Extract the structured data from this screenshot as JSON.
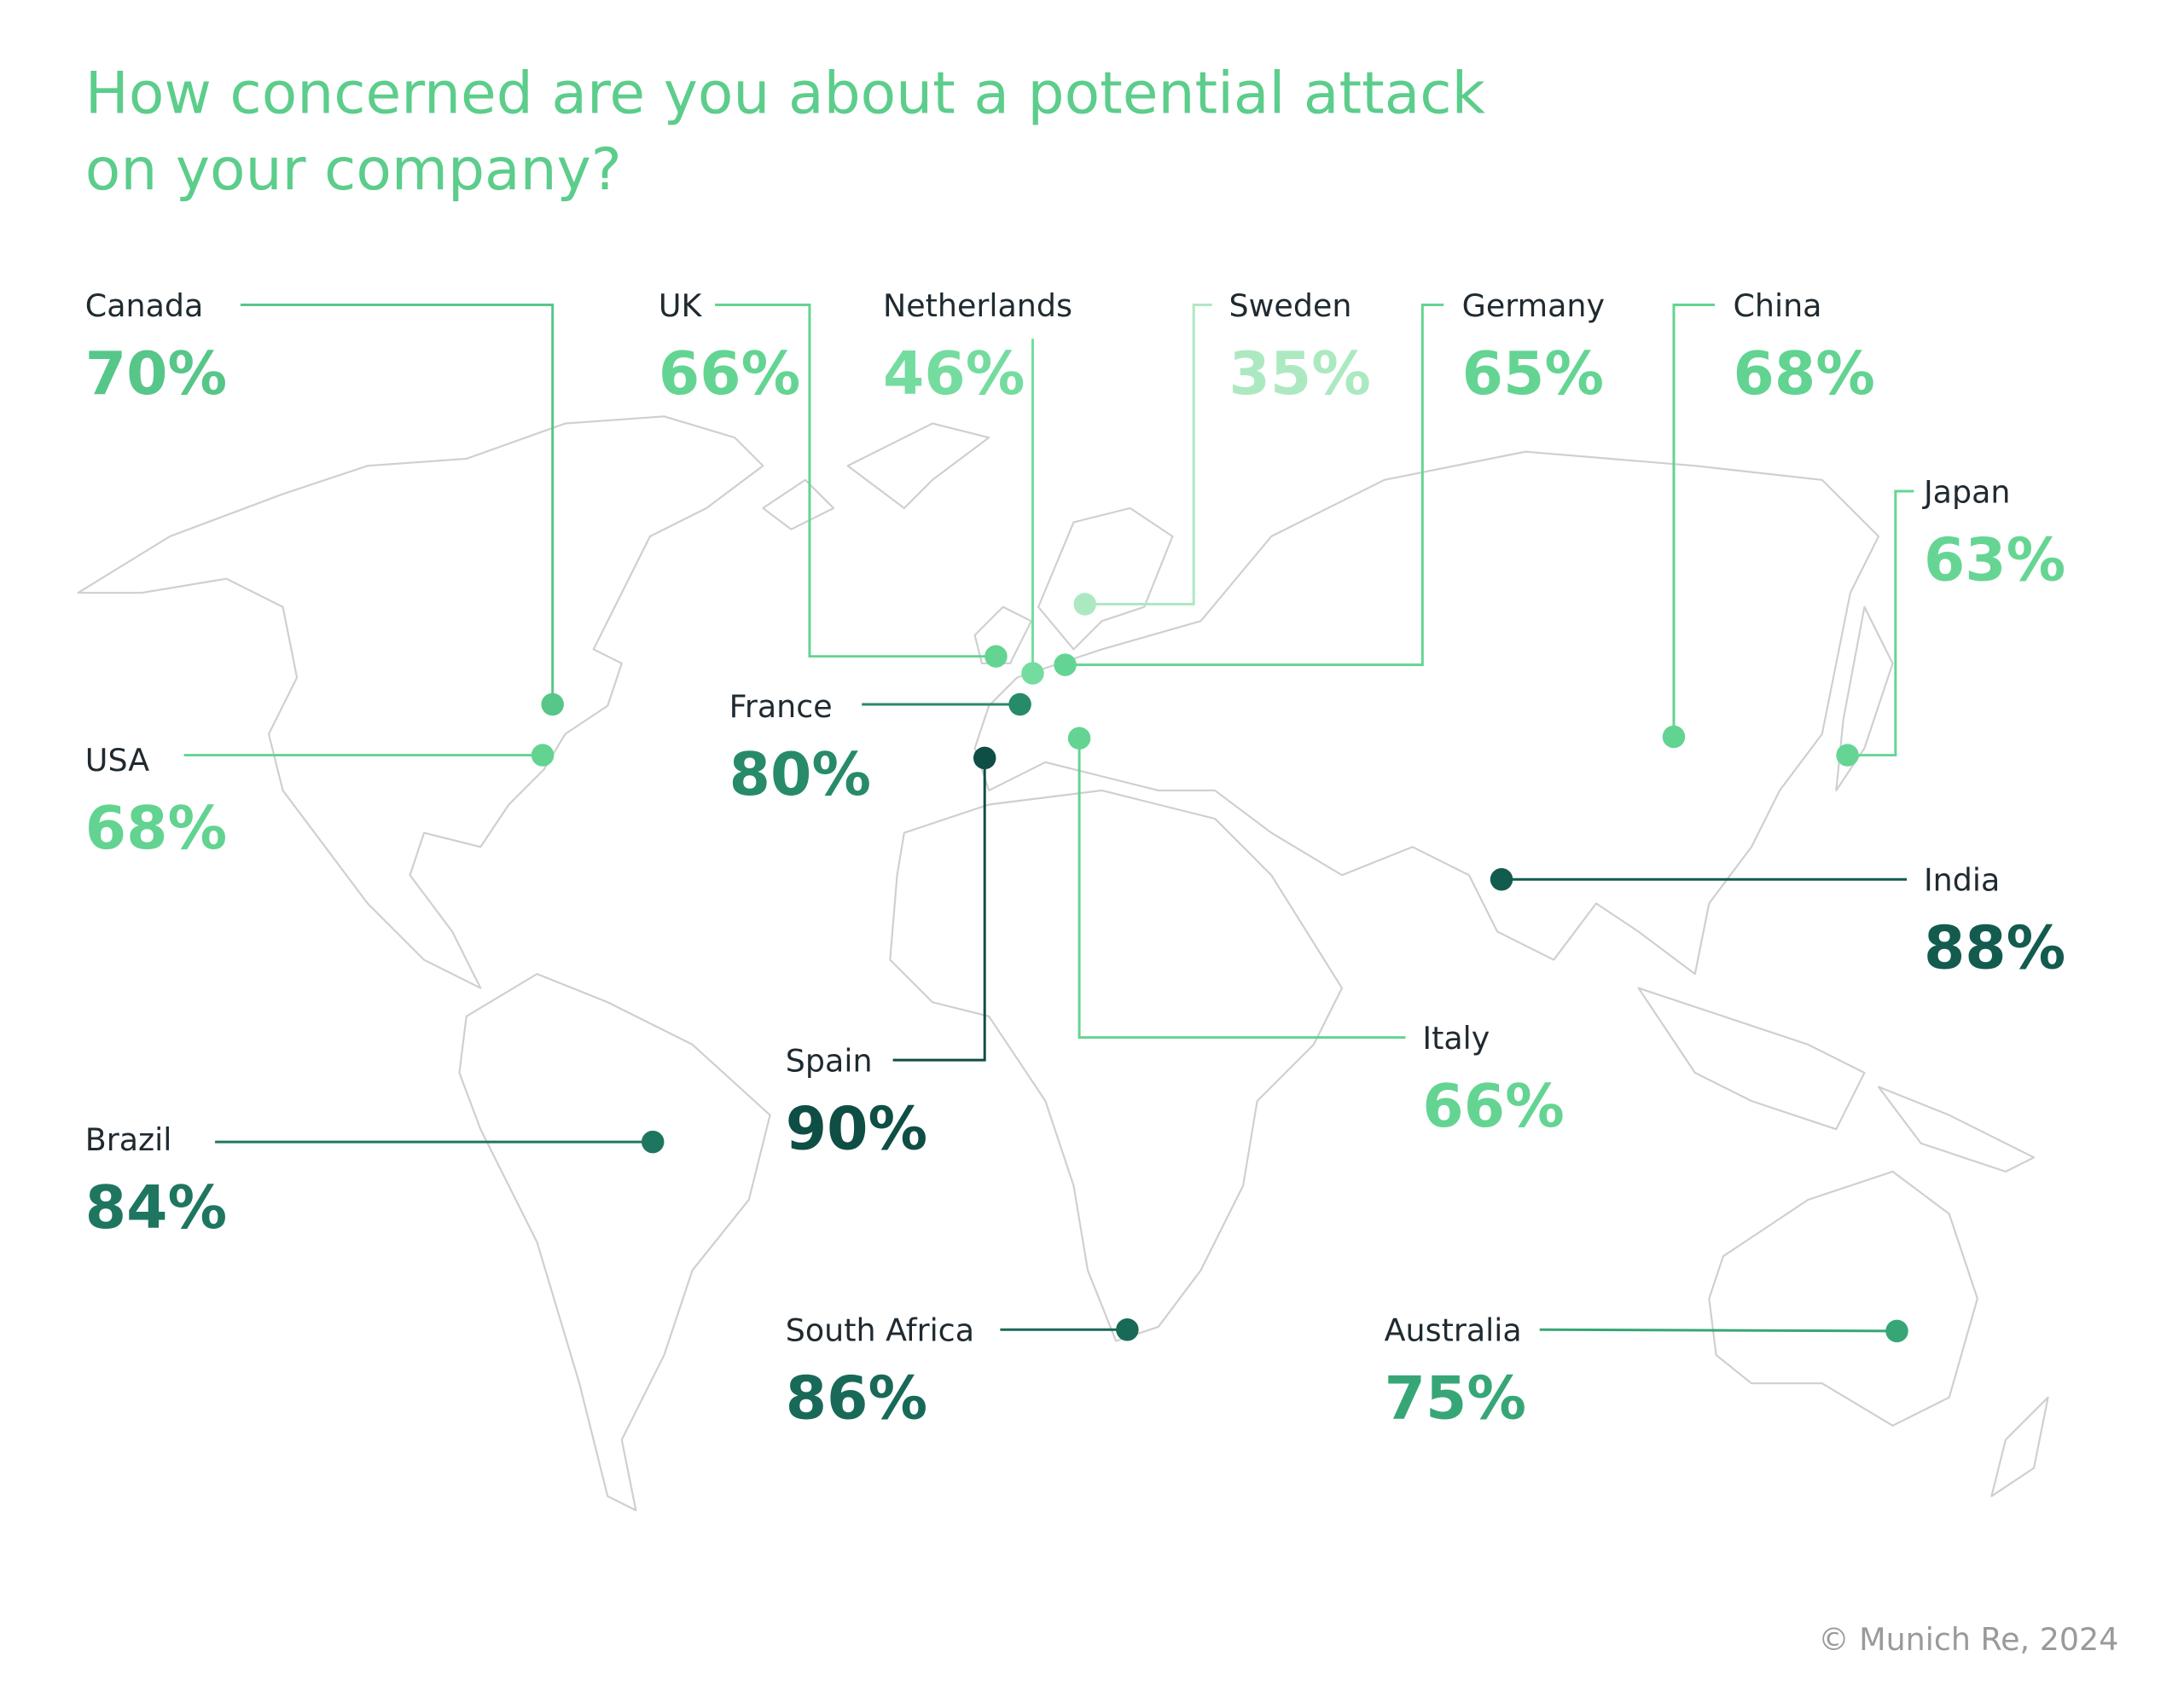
{
  "title": [
    "How concerned are you about a potential attack",
    "on your company?"
  ],
  "countries": [
    {
      "name": "Canada",
      "value": 70,
      "value_label": "70%"
    },
    {
      "name": "UK",
      "value": 66,
      "value_label": "66%"
    },
    {
      "name": "Netherlands",
      "value": 46,
      "value_label": "46%"
    },
    {
      "name": "Sweden",
      "value": 35,
      "value_label": "35%"
    },
    {
      "name": "Germany",
      "value": 65,
      "value_label": "65%"
    },
    {
      "name": "China",
      "value": 68,
      "value_label": "68%"
    },
    {
      "name": "Japan",
      "value": 63,
      "value_label": "63%"
    },
    {
      "name": "USA",
      "value": 68,
      "value_label": "68%"
    },
    {
      "name": "France",
      "value": 80,
      "value_label": "80%"
    },
    {
      "name": "Spain",
      "value": 90,
      "value_label": "90%"
    },
    {
      "name": "Italy",
      "value": 66,
      "value_label": "66%"
    },
    {
      "name": "India",
      "value": 88,
      "value_label": "88%"
    },
    {
      "name": "Brazil",
      "value": 84,
      "value_label": "84%"
    },
    {
      "name": "South Africa",
      "value": 86,
      "value_label": "86%"
    },
    {
      "name": "Australia",
      "value": 75,
      "value_label": "75%"
    }
  ],
  "copyright": "© Munich Re, 2024"
}
